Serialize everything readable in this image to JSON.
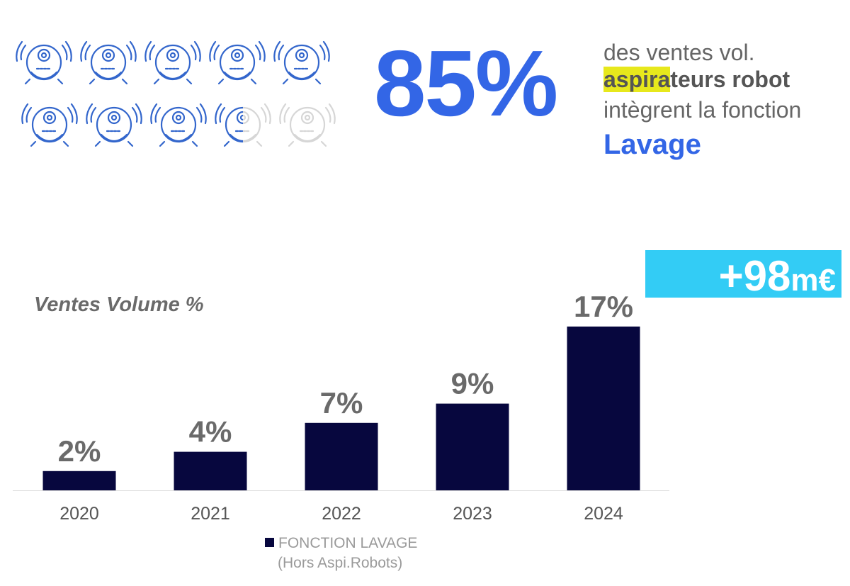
{
  "colors": {
    "accent": "#3366e6",
    "bar": "#07073e",
    "highlight": "#e7e81c",
    "badge": "#33ccf5",
    "robot_active": "#3366cc",
    "robot_inactive": "#d6d6d6"
  },
  "icon": "robot-vacuum-icon",
  "headline": {
    "stat": "85%",
    "line1": "des ventes vol.",
    "line2_highlight": "aspira",
    "line2_rest": "teurs robot",
    "line3": "intègrent la fonction",
    "line4": "Lavage",
    "robots_total": 10,
    "robots_filled": 8.5
  },
  "badge": {
    "number": "+98",
    "unit": "m€"
  },
  "chart_data": {
    "type": "bar",
    "title": "Ventes Volume %",
    "categories": [
      "2020",
      "2021",
      "2022",
      "2023",
      "2024"
    ],
    "series": [
      {
        "name": "FONCTION LAVAGE",
        "values": [
          2,
          4,
          7,
          9,
          17
        ]
      }
    ],
    "data_labels": [
      "2%",
      "4%",
      "7%",
      "9%",
      "17%"
    ],
    "ylim": [
      0,
      20
    ],
    "grid": false,
    "legend_position": "bottom-center",
    "legend_note": "(Hors Aspi.Robots)"
  }
}
